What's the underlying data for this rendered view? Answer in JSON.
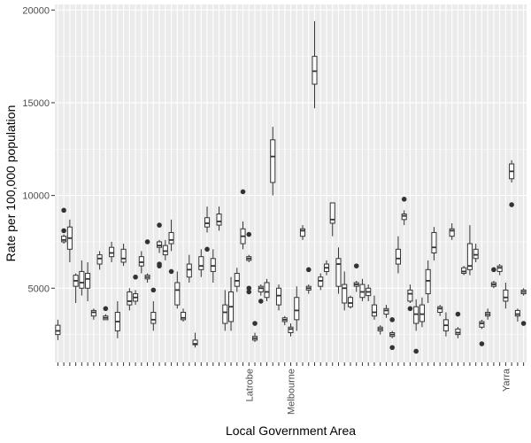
{
  "chart_data": {
    "type": "boxplot",
    "xlabel": "Local Government Area",
    "ylabel": "Rate per 100,000 population",
    "ylim": [
      1000,
      20300
    ],
    "y_ticks": [
      5000,
      10000,
      15000,
      20000
    ],
    "y_tick_labels": [
      "5000",
      "10000",
      "15000",
      "20000"
    ],
    "category_count": 79,
    "category_labels": [
      {
        "index": 32,
        "label": "Latrobe"
      },
      {
        "index": 39,
        "label": "Melbourne"
      },
      {
        "index": 75,
        "label": "Yarra"
      }
    ],
    "grid": true,
    "colors": {
      "panel": "#ebebeb",
      "grid": "#ffffff",
      "box_outline": "#333333",
      "outlier": "#333333"
    },
    "boxes": [
      {
        "min": 2200,
        "q1": 2500,
        "median": 2700,
        "q3": 3000,
        "max": 3300,
        "outliers": []
      },
      {
        "min": 7400,
        "q1": 7500,
        "median": 7600,
        "q3": 7800,
        "max": 7900,
        "outliers": [
          8100,
          9200
        ]
      },
      {
        "min": 6400,
        "q1": 7100,
        "median": 7700,
        "q3": 8300,
        "max": 8700,
        "outliers": []
      },
      {
        "min": 4200,
        "q1": 5100,
        "median": 5400,
        "q3": 5700,
        "max": 5800,
        "outliers": []
      },
      {
        "min": 4600,
        "q1": 5000,
        "median": 5300,
        "q3": 5900,
        "max": 6500,
        "outliers": []
      },
      {
        "min": 4300,
        "q1": 5000,
        "median": 5500,
        "q3": 5800,
        "max": 6400,
        "outliers": []
      },
      {
        "min": 3300,
        "q1": 3500,
        "median": 3700,
        "q3": 3800,
        "max": 3900,
        "outliers": []
      },
      {
        "min": 6000,
        "q1": 6300,
        "median": 6600,
        "q3": 6800,
        "max": 7000,
        "outliers": []
      },
      {
        "min": 3300,
        "q1": 3300,
        "median": 3400,
        "q3": 3500,
        "max": 3600,
        "outliers": [
          3900
        ]
      },
      {
        "min": 6400,
        "q1": 6700,
        "median": 6900,
        "q3": 7200,
        "max": 7500,
        "outliers": []
      },
      {
        "min": 2300,
        "q1": 2700,
        "median": 3200,
        "q3": 3700,
        "max": 4300,
        "outliers": []
      },
      {
        "min": 6200,
        "q1": 6400,
        "median": 6600,
        "q3": 7100,
        "max": 7400,
        "outliers": []
      },
      {
        "min": 3800,
        "q1": 4100,
        "median": 4300,
        "q3": 4800,
        "max": 5000,
        "outliers": []
      },
      {
        "min": 4100,
        "q1": 4300,
        "median": 4500,
        "q3": 4700,
        "max": 4900,
        "outliers": [
          5600
        ]
      },
      {
        "min": 5800,
        "q1": 6200,
        "median": 6400,
        "q3": 6700,
        "max": 7000,
        "outliers": []
      },
      {
        "min": 5300,
        "q1": 5500,
        "median": 5600,
        "q3": 5700,
        "max": 5800,
        "outliers": [
          7500
        ]
      },
      {
        "min": 2700,
        "q1": 3100,
        "median": 3300,
        "q3": 3700,
        "max": 4300,
        "outliers": [
          4900
        ]
      },
      {
        "min": 6900,
        "q1": 7200,
        "median": 7300,
        "q3": 7500,
        "max": 7600,
        "outliers": [
          6200,
          6300,
          8400
        ]
      },
      {
        "min": 6500,
        "q1": 6800,
        "median": 7000,
        "q3": 7300,
        "max": 7600,
        "outliers": []
      },
      {
        "min": 7000,
        "q1": 7400,
        "median": 7600,
        "q3": 8000,
        "max": 8700,
        "outliers": [
          5900
        ]
      },
      {
        "min": 3900,
        "q1": 4100,
        "median": 4900,
        "q3": 5300,
        "max": 5900,
        "outliers": []
      },
      {
        "min": 3200,
        "q1": 3300,
        "median": 3400,
        "q3": 3700,
        "max": 3900,
        "outliers": []
      },
      {
        "min": 5300,
        "q1": 5600,
        "median": 6000,
        "q3": 6300,
        "max": 6800,
        "outliers": []
      },
      {
        "min": 1800,
        "q1": 1950,
        "median": 2000,
        "q3": 2200,
        "max": 2600,
        "outliers": []
      },
      {
        "min": 5600,
        "q1": 6000,
        "median": 6200,
        "q3": 6700,
        "max": 7100,
        "outliers": []
      },
      {
        "min": 8000,
        "q1": 8300,
        "median": 8500,
        "q3": 8800,
        "max": 9400,
        "outliers": [
          7100
        ]
      },
      {
        "min": 5300,
        "q1": 5900,
        "median": 6200,
        "q3": 6600,
        "max": 7100,
        "outliers": []
      },
      {
        "min": 8100,
        "q1": 8400,
        "median": 8600,
        "q3": 9000,
        "max": 9400,
        "outliers": []
      },
      {
        "min": 2700,
        "q1": 3100,
        "median": 3700,
        "q3": 4100,
        "max": 4900,
        "outliers": []
      },
      {
        "min": 2700,
        "q1": 3200,
        "median": 4000,
        "q3": 4800,
        "max": 5600,
        "outliers": []
      },
      {
        "min": 4800,
        "q1": 5100,
        "median": 5400,
        "q3": 5800,
        "max": 6100,
        "outliers": []
      },
      {
        "min": 7100,
        "q1": 7400,
        "median": 7800,
        "q3": 8200,
        "max": 8600,
        "outliers": [
          10200
        ]
      },
      {
        "min": 6400,
        "q1": 6500,
        "median": 6600,
        "q3": 6700,
        "max": 6800,
        "outliers": [
          7900,
          4800,
          5000
        ]
      },
      {
        "min": 2100,
        "q1": 2200,
        "median": 2300,
        "q3": 2400,
        "max": 2600,
        "outliers": [
          3100
        ]
      },
      {
        "min": 4600,
        "q1": 4800,
        "median": 5000,
        "q3": 5100,
        "max": 5200,
        "outliers": [
          4300
        ]
      },
      {
        "min": 4300,
        "q1": 4500,
        "median": 4800,
        "q3": 5300,
        "max": 5500,
        "outliers": []
      },
      {
        "min": 10000,
        "q1": 10700,
        "median": 12100,
        "q3": 13000,
        "max": 13700,
        "outliers": []
      },
      {
        "min": 3800,
        "q1": 4100,
        "median": 4600,
        "q3": 5000,
        "max": 5200,
        "outliers": []
      },
      {
        "min": 3000,
        "q1": 3200,
        "median": 3300,
        "q3": 3400,
        "max": 3500,
        "outliers": []
      },
      {
        "min": 2400,
        "q1": 2600,
        "median": 2800,
        "q3": 2900,
        "max": 3100,
        "outliers": []
      },
      {
        "min": 2700,
        "q1": 3300,
        "median": 3800,
        "q3": 4500,
        "max": 5100,
        "outliers": []
      },
      {
        "min": 7600,
        "q1": 7800,
        "median": 8100,
        "q3": 8200,
        "max": 8400,
        "outliers": []
      },
      {
        "min": 4700,
        "q1": 4900,
        "median": 5000,
        "q3": 5100,
        "max": 5200,
        "outliers": [
          6000
        ]
      },
      {
        "min": 14700,
        "q1": 16000,
        "median": 16700,
        "q3": 17500,
        "max": 19400,
        "outliers": []
      },
      {
        "min": 4900,
        "q1": 5100,
        "median": 5400,
        "q3": 5600,
        "max": 5800,
        "outliers": []
      },
      {
        "min": 5700,
        "q1": 5900,
        "median": 6100,
        "q3": 6300,
        "max": 6500,
        "outliers": []
      },
      {
        "min": 7800,
        "q1": 8500,
        "median": 8700,
        "q3": 9600,
        "max": 9600,
        "outliers": []
      },
      {
        "min": 4700,
        "q1": 5100,
        "median": 6300,
        "q3": 6600,
        "max": 7200,
        "outliers": []
      },
      {
        "min": 3800,
        "q1": 4200,
        "median": 5000,
        "q3": 5200,
        "max": 5900,
        "outliers": []
      },
      {
        "min": 3900,
        "q1": 4000,
        "median": 4200,
        "q3": 4500,
        "max": 4600,
        "outliers": []
      },
      {
        "min": 4800,
        "q1": 5100,
        "median": 5200,
        "q3": 5300,
        "max": 5400,
        "outliers": [
          6200
        ]
      },
      {
        "min": 4300,
        "q1": 4500,
        "median": 4800,
        "q3": 5200,
        "max": 5500,
        "outliers": []
      },
      {
        "min": 4300,
        "q1": 4600,
        "median": 4800,
        "q3": 5000,
        "max": 5200,
        "outliers": []
      },
      {
        "min": 3300,
        "q1": 3500,
        "median": 3700,
        "q3": 4100,
        "max": 4600,
        "outliers": []
      },
      {
        "min": 2500,
        "q1": 2700,
        "median": 2800,
        "q3": 2900,
        "max": 3000,
        "outliers": []
      },
      {
        "min": 3400,
        "q1": 3600,
        "median": 3800,
        "q3": 3900,
        "max": 4100,
        "outliers": []
      },
      {
        "min": 2300,
        "q1": 2400,
        "median": 2500,
        "q3": 2600,
        "max": 2700,
        "outliers": [
          1800,
          3300
        ]
      },
      {
        "min": 5800,
        "q1": 6300,
        "median": 6600,
        "q3": 7100,
        "max": 7800,
        "outliers": []
      },
      {
        "min": 8400,
        "q1": 8700,
        "median": 8900,
        "q3": 9000,
        "max": 9200,
        "outliers": [
          9800
        ]
      },
      {
        "min": 4200,
        "q1": 4300,
        "median": 4700,
        "q3": 4900,
        "max": 5200,
        "outliers": [
          3900
        ]
      },
      {
        "min": 2700,
        "q1": 3100,
        "median": 3600,
        "q3": 4000,
        "max": 4400,
        "outliers": [
          1600
        ]
      },
      {
        "min": 2900,
        "q1": 3200,
        "median": 3600,
        "q3": 4100,
        "max": 4500,
        "outliers": []
      },
      {
        "min": 4200,
        "q1": 4700,
        "median": 5400,
        "q3": 6000,
        "max": 6500,
        "outliers": []
      },
      {
        "min": 6500,
        "q1": 6900,
        "median": 7200,
        "q3": 8000,
        "max": 8300,
        "outliers": []
      },
      {
        "min": 3500,
        "q1": 3700,
        "median": 3900,
        "q3": 4000,
        "max": 4100,
        "outliers": []
      },
      {
        "min": 2400,
        "q1": 2700,
        "median": 3000,
        "q3": 3300,
        "max": 3700,
        "outliers": []
      },
      {
        "min": 7600,
        "q1": 7800,
        "median": 8100,
        "q3": 8200,
        "max": 8500,
        "outliers": []
      },
      {
        "min": 2300,
        "q1": 2500,
        "median": 2600,
        "q3": 2800,
        "max": 2900,
        "outliers": [
          3600
        ]
      },
      {
        "min": 5700,
        "q1": 5800,
        "median": 5900,
        "q3": 6100,
        "max": 6200,
        "outliers": []
      },
      {
        "min": 5700,
        "q1": 6000,
        "median": 6200,
        "q3": 7400,
        "max": 8400,
        "outliers": []
      },
      {
        "min": 6400,
        "q1": 6600,
        "median": 6800,
        "q3": 7100,
        "max": 7400,
        "outliers": []
      },
      {
        "min": 2800,
        "q1": 2900,
        "median": 3100,
        "q3": 3200,
        "max": 3300,
        "outliers": [
          2000
        ]
      },
      {
        "min": 3300,
        "q1": 3500,
        "median": 3600,
        "q3": 3700,
        "max": 3900,
        "outliers": []
      },
      {
        "min": 5000,
        "q1": 5100,
        "median": 5200,
        "q3": 5300,
        "max": 5400,
        "outliers": [
          6000
        ]
      },
      {
        "min": 5700,
        "q1": 5900,
        "median": 6100,
        "q3": 6200,
        "max": 6300,
        "outliers": []
      },
      {
        "min": 3900,
        "q1": 4300,
        "median": 4500,
        "q3": 4900,
        "max": 5300,
        "outliers": []
      },
      {
        "min": 10700,
        "q1": 10900,
        "median": 11300,
        "q3": 11700,
        "max": 11900,
        "outliers": [
          9500
        ]
      },
      {
        "min": 3200,
        "q1": 3500,
        "median": 3600,
        "q3": 3800,
        "max": 3900,
        "outliers": []
      },
      {
        "min": 4600,
        "q1": 4700,
        "median": 4800,
        "q3": 4900,
        "max": 5000,
        "outliers": [
          3100
        ]
      }
    ]
  }
}
